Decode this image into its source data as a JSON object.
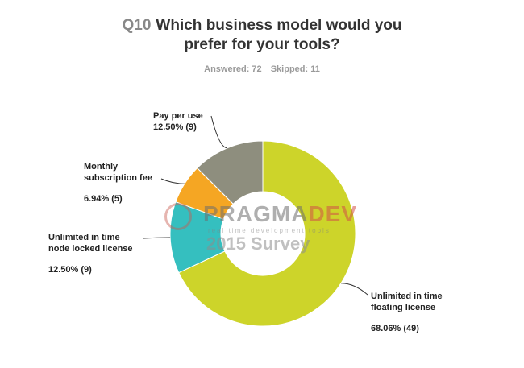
{
  "header": {
    "qnum": "Q10",
    "title_line1": "Which business model would you",
    "title_line2": "prefer for your tools?",
    "answered": "Answered: 72",
    "skipped": "Skipped: 11"
  },
  "watermark": {
    "brand_part1": "PRAGMA",
    "brand_part2": "DEV",
    "tagline": "real time development tools",
    "year": "2015 Survey"
  },
  "chart_data": {
    "type": "pie",
    "donut": true,
    "slices": [
      {
        "label": "Unlimited in time floating license",
        "line1": "Unlimited in time",
        "line2": "floating license",
        "pct_label": "68.06% (49)",
        "value": 68.06,
        "count": 49,
        "color": "#cdd42a"
      },
      {
        "label": "Unlimited in time node locked license",
        "line1": "Unlimited in time",
        "line2": "node locked license",
        "pct_label": "12.50% (9)",
        "value": 12.5,
        "count": 9,
        "color": "#35bfbf"
      },
      {
        "label": "Monthly subscription fee",
        "line1": "Monthly",
        "line2": "subscription fee",
        "pct_label": "6.94% (5)",
        "value": 6.94,
        "count": 5,
        "color": "#f5a623"
      },
      {
        "label": "Pay per use",
        "line1": "Pay per use",
        "line2": "",
        "pct_label": "12.50% (9)",
        "value": 12.5,
        "count": 9,
        "color": "#8e8e7e"
      }
    ]
  }
}
